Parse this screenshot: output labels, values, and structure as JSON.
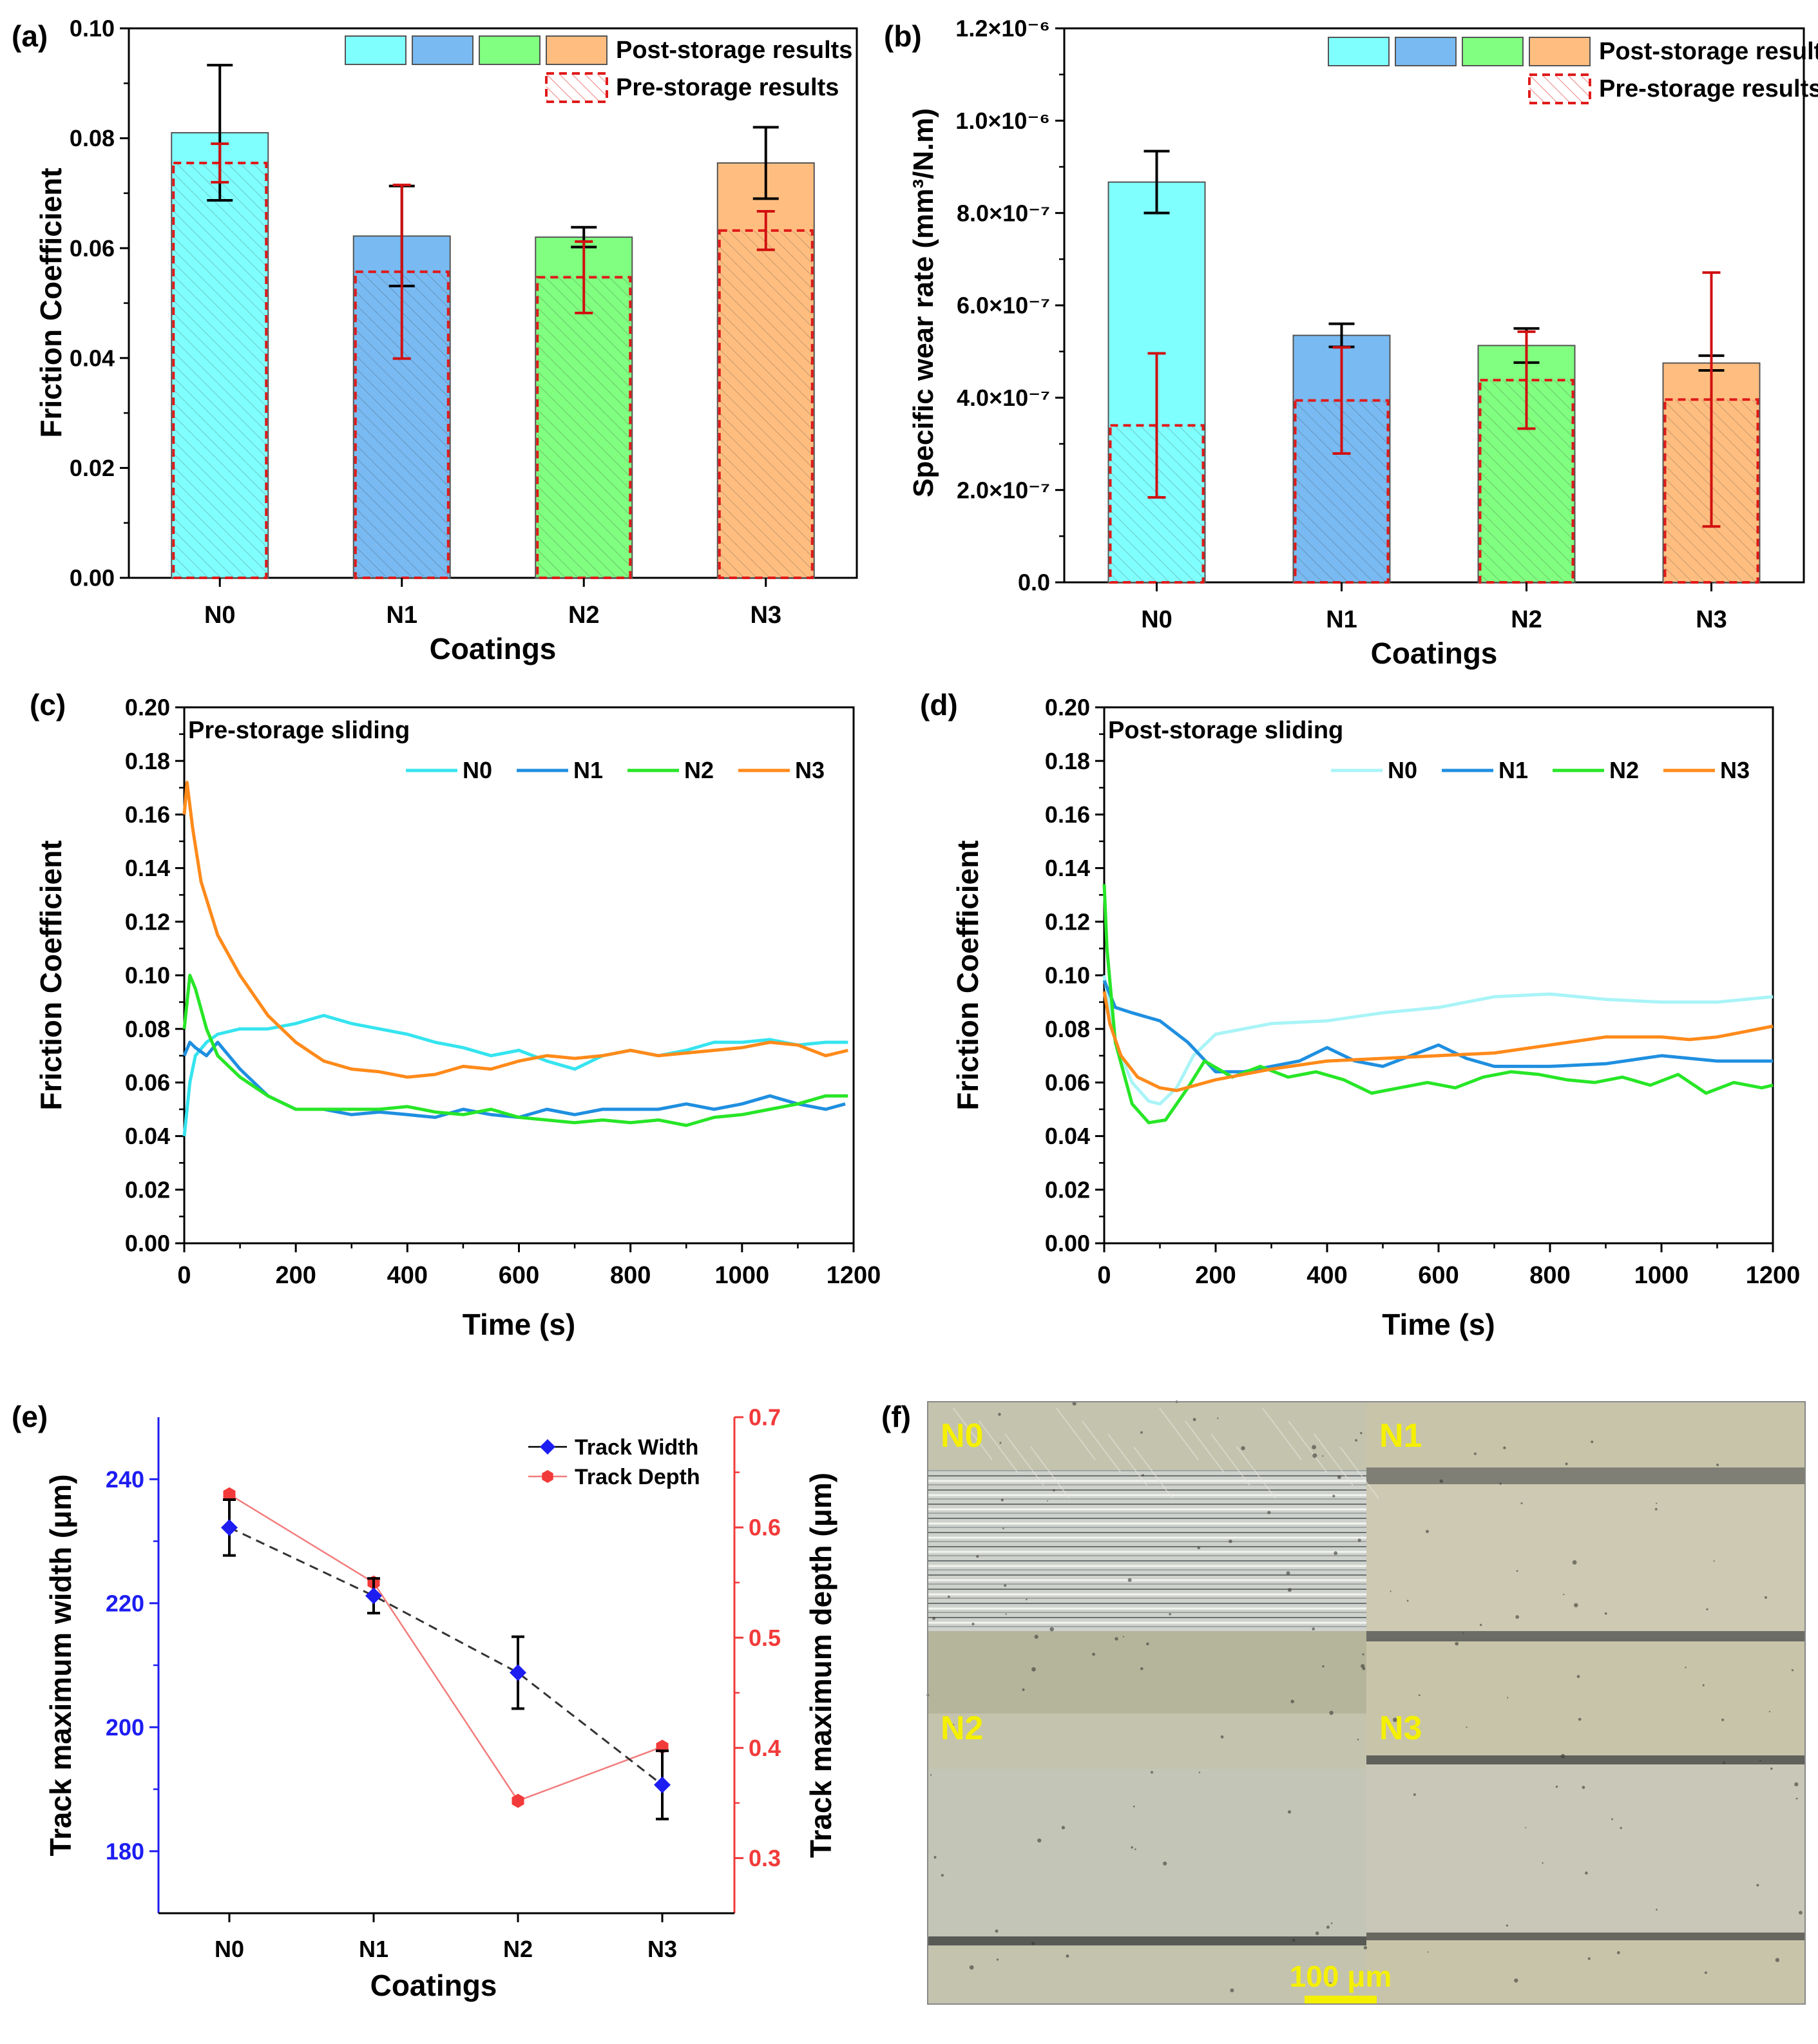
{
  "figure_colors": {
    "N0": "#80ffff",
    "N1": "#79baf2",
    "N2": "#80ff80",
    "N3": "#ffbe80",
    "line_N0": "#35e4ef",
    "line_N1": "#1f8fe0",
    "line_N2": "#27e627",
    "line_N3": "#ff8a1a",
    "pre_hatch": "#e01a1a"
  },
  "chart_data": [
    {
      "panel": "(a)",
      "type": "bar",
      "ylabel": "Friction Coefficient",
      "xlabel": "Coatings",
      "categories": [
        "N0",
        "N1",
        "N2",
        "N3"
      ],
      "ylim": [
        0,
        0.1
      ],
      "yticks": [
        "0.00",
        "0.02",
        "0.04",
        "0.06",
        "0.08",
        "0.10"
      ],
      "series": [
        {
          "name": "Post-storage results",
          "values": [
            0.081,
            0.0622,
            0.062,
            0.0755
          ],
          "err": [
            0.0123,
            0.0091,
            0.0018,
            0.0065
          ]
        },
        {
          "name": "Pre-storage results",
          "values": [
            0.0755,
            0.0557,
            0.0547,
            0.0632
          ],
          "err": [
            0.0035,
            0.0158,
            0.0065,
            0.0035
          ]
        }
      ]
    },
    {
      "panel": "(b)",
      "type": "bar",
      "ylabel": "Specific wear rate (mm³/N.m)",
      "xlabel": "Coatings",
      "categories": [
        "N0",
        "N1",
        "N2",
        "N3"
      ],
      "ylim": [
        0,
        1.2e-06
      ],
      "yticks": [
        "0.0",
        "2.0×10⁻⁷",
        "4.0×10⁻⁷",
        "6.0×10⁻⁷",
        "8.0×10⁻⁷",
        "1.0×10⁻⁶",
        "1.2×10⁻⁶"
      ],
      "series": [
        {
          "name": "Post-storage results",
          "values": [
            8.67e-07,
            5.35e-07,
            5.13e-07,
            4.75e-07
          ],
          "err": [
            6.7e-08,
            2.5e-08,
            3.7e-08,
            1.6e-08
          ]
        },
        {
          "name": "Pre-storage results",
          "values": [
            3.4e-07,
            3.94e-07,
            4.38e-07,
            3.96e-07
          ],
          "err": [
            1.56e-07,
            1.15e-07,
            1.05e-07,
            2.75e-07
          ]
        }
      ]
    },
    {
      "panel": "(c)",
      "type": "line",
      "annotation": "Pre-storage sliding",
      "xlabel": "Time (s)",
      "ylabel": "Friction Coefficient",
      "xlim": [
        0,
        1200
      ],
      "ylim": [
        0,
        0.2
      ],
      "xticks": [
        "0",
        "200",
        "400",
        "600",
        "800",
        "1000",
        "1200"
      ],
      "yticks": [
        "0.00",
        "0.02",
        "0.04",
        "0.06",
        "0.08",
        "0.10",
        "0.12",
        "0.14",
        "0.16",
        "0.18",
        "0.20"
      ],
      "series": [
        {
          "name": "N0",
          "x": [
            0,
            10,
            20,
            40,
            60,
            100,
            150,
            200,
            250,
            300,
            350,
            400,
            450,
            500,
            550,
            600,
            650,
            700,
            750,
            800,
            850,
            900,
            950,
            1000,
            1050,
            1100,
            1150,
            1190
          ],
          "y": [
            0.04,
            0.06,
            0.07,
            0.075,
            0.078,
            0.08,
            0.08,
            0.082,
            0.085,
            0.082,
            0.08,
            0.078,
            0.075,
            0.073,
            0.07,
            0.072,
            0.068,
            0.065,
            0.07,
            0.072,
            0.07,
            0.072,
            0.075,
            0.075,
            0.076,
            0.074,
            0.075,
            0.075
          ]
        },
        {
          "name": "N1",
          "x": [
            0,
            10,
            20,
            40,
            60,
            100,
            150,
            200,
            250,
            300,
            350,
            400,
            450,
            500,
            550,
            600,
            650,
            700,
            750,
            800,
            850,
            900,
            950,
            1000,
            1050,
            1100,
            1150,
            1185
          ],
          "y": [
            0.07,
            0.075,
            0.073,
            0.07,
            0.075,
            0.065,
            0.055,
            0.05,
            0.05,
            0.048,
            0.049,
            0.048,
            0.047,
            0.05,
            0.048,
            0.047,
            0.05,
            0.048,
            0.05,
            0.05,
            0.05,
            0.052,
            0.05,
            0.052,
            0.055,
            0.052,
            0.05,
            0.052
          ]
        },
        {
          "name": "N2",
          "x": [
            0,
            10,
            20,
            40,
            60,
            100,
            150,
            200,
            250,
            300,
            350,
            400,
            450,
            500,
            550,
            600,
            650,
            700,
            750,
            800,
            850,
            900,
            950,
            1000,
            1050,
            1100,
            1150,
            1190
          ],
          "y": [
            0.08,
            0.1,
            0.095,
            0.08,
            0.07,
            0.062,
            0.055,
            0.05,
            0.05,
            0.05,
            0.05,
            0.051,
            0.049,
            0.048,
            0.05,
            0.047,
            0.046,
            0.045,
            0.046,
            0.045,
            0.046,
            0.044,
            0.047,
            0.048,
            0.05,
            0.052,
            0.055,
            0.055
          ]
        },
        {
          "name": "N3",
          "x": [
            0,
            5,
            15,
            30,
            60,
            100,
            150,
            200,
            250,
            300,
            350,
            400,
            450,
            500,
            550,
            600,
            650,
            700,
            750,
            800,
            850,
            900,
            950,
            1000,
            1050,
            1100,
            1150,
            1190
          ],
          "y": [
            0.16,
            0.172,
            0.155,
            0.135,
            0.115,
            0.1,
            0.085,
            0.075,
            0.068,
            0.065,
            0.064,
            0.062,
            0.063,
            0.066,
            0.065,
            0.068,
            0.07,
            0.069,
            0.07,
            0.072,
            0.07,
            0.071,
            0.072,
            0.073,
            0.075,
            0.074,
            0.07,
            0.072
          ]
        }
      ]
    },
    {
      "panel": "(d)",
      "type": "line",
      "annotation": "Post-storage sliding",
      "xlabel": "Time (s)",
      "ylabel": "Friction Coefficient",
      "xlim": [
        0,
        1200
      ],
      "ylim": [
        0,
        0.2
      ],
      "xticks": [
        "0",
        "200",
        "400",
        "600",
        "800",
        "1000",
        "1200"
      ],
      "yticks": [
        "0.00",
        "0.02",
        "0.04",
        "0.06",
        "0.08",
        "0.10",
        "0.12",
        "0.14",
        "0.16",
        "0.18",
        "0.20"
      ],
      "series": [
        {
          "name": "N0",
          "x": [
            0,
            20,
            50,
            80,
            100,
            130,
            160,
            200,
            300,
            400,
            500,
            600,
            700,
            800,
            900,
            1000,
            1100,
            1200
          ],
          "y": [
            0.1,
            0.075,
            0.06,
            0.053,
            0.052,
            0.058,
            0.07,
            0.078,
            0.082,
            0.083,
            0.086,
            0.088,
            0.092,
            0.093,
            0.091,
            0.09,
            0.09,
            0.092
          ]
        },
        {
          "name": "N1",
          "x": [
            0,
            20,
            50,
            100,
            150,
            200,
            250,
            300,
            350,
            400,
            450,
            500,
            550,
            600,
            650,
            700,
            800,
            900,
            1000,
            1100,
            1200
          ],
          "y": [
            0.098,
            0.088,
            0.086,
            0.083,
            0.075,
            0.064,
            0.064,
            0.066,
            0.068,
            0.073,
            0.068,
            0.066,
            0.07,
            0.074,
            0.069,
            0.066,
            0.066,
            0.067,
            0.07,
            0.068,
            0.068
          ]
        },
        {
          "name": "N2",
          "x": [
            0,
            5,
            20,
            50,
            80,
            110,
            150,
            180,
            230,
            280,
            330,
            380,
            430,
            480,
            530,
            580,
            630,
            680,
            730,
            780,
            830,
            880,
            930,
            980,
            1030,
            1080,
            1130,
            1180,
            1200
          ],
          "y": [
            0.134,
            0.11,
            0.075,
            0.052,
            0.045,
            0.046,
            0.058,
            0.068,
            0.062,
            0.066,
            0.062,
            0.064,
            0.061,
            0.056,
            0.058,
            0.06,
            0.058,
            0.062,
            0.064,
            0.063,
            0.061,
            0.06,
            0.062,
            0.059,
            0.063,
            0.056,
            0.06,
            0.058,
            0.059
          ]
        },
        {
          "name": "N3",
          "x": [
            0,
            10,
            30,
            60,
            100,
            130,
            200,
            300,
            400,
            500,
            600,
            700,
            800,
            900,
            1000,
            1050,
            1100,
            1150,
            1200
          ],
          "y": [
            0.094,
            0.082,
            0.07,
            0.062,
            0.058,
            0.057,
            0.061,
            0.065,
            0.068,
            0.069,
            0.07,
            0.071,
            0.074,
            0.077,
            0.077,
            0.076,
            0.077,
            0.079,
            0.081
          ]
        }
      ]
    },
    {
      "panel": "(e)",
      "type": "line",
      "xlabel": "Coatings",
      "categories": [
        "N0",
        "N1",
        "N2",
        "N3"
      ],
      "left_axis": {
        "label": "Track maximum width (μm)",
        "lim": [
          170,
          250
        ],
        "ticks": [
          "180",
          "200",
          "220",
          "240"
        ]
      },
      "right_axis": {
        "label": "Track maximum depth (μm)",
        "lim": [
          0.25,
          0.7
        ],
        "ticks": [
          "0.3",
          "0.4",
          "0.5",
          "0.6",
          "0.7"
        ]
      },
      "series": [
        {
          "name": "Track Width",
          "axis": "left",
          "values": [
            232.2,
            221.2,
            208.8,
            190.7
          ],
          "err": [
            4.5,
            2.8,
            5.8,
            5.5
          ]
        },
        {
          "name": "Track Depth",
          "axis": "right",
          "values": [
            0.63,
            0.55,
            0.352,
            0.401
          ]
        }
      ]
    }
  ],
  "panel_f": {
    "label": "(f)",
    "quadrants": [
      "N0",
      "N1",
      "N2",
      "N3"
    ],
    "scale_bar": "100 μm"
  }
}
